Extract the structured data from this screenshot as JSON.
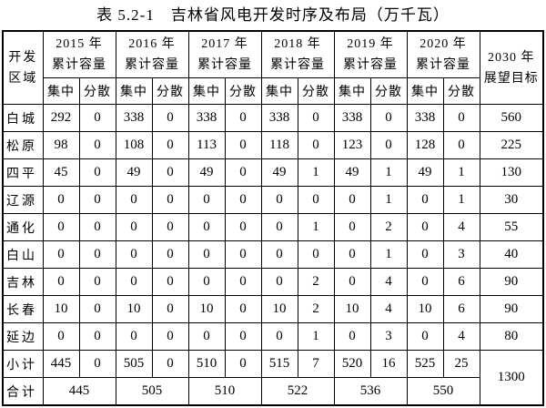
{
  "title": "表 5.2-1　吉林省风电开发时序及布局（万千瓦）",
  "table": {
    "region_header": {
      "line1": "开发",
      "line2": "区域"
    },
    "year_groups": [
      {
        "line1": "2015 年",
        "line2": "累计容量"
      },
      {
        "line1": "2016 年",
        "line2": "累计容量"
      },
      {
        "line1": "2017 年",
        "line2": "累计容量"
      },
      {
        "line1": "2018 年",
        "line2": "累计容量"
      },
      {
        "line1": "2019 年",
        "line2": "累计容量"
      },
      {
        "line1": "2020 年",
        "line2": "累计容量"
      }
    ],
    "subheaders": {
      "concentrated": "集中",
      "distributed": "分散"
    },
    "outlook_header": {
      "line1": "2030 年",
      "line2": "展望目标"
    },
    "rows": [
      {
        "region": "白城",
        "values": [
          "292",
          "0",
          "338",
          "0",
          "338",
          "0",
          "338",
          "0",
          "338",
          "0",
          "338",
          "0"
        ],
        "outlook": "560"
      },
      {
        "region": "松原",
        "values": [
          "98",
          "0",
          "108",
          "0",
          "113",
          "0",
          "118",
          "0",
          "123",
          "0",
          "128",
          "0"
        ],
        "outlook": "225"
      },
      {
        "region": "四平",
        "values": [
          "45",
          "0",
          "49",
          "0",
          "49",
          "0",
          "49",
          "1",
          "49",
          "1",
          "49",
          "1"
        ],
        "outlook": "130"
      },
      {
        "region": "辽源",
        "values": [
          "0",
          "0",
          "0",
          "0",
          "0",
          "0",
          "0",
          "0",
          "0",
          "1",
          "0",
          "1"
        ],
        "outlook": "30"
      },
      {
        "region": "通化",
        "values": [
          "0",
          "0",
          "0",
          "0",
          "0",
          "0",
          "0",
          "1",
          "0",
          "2",
          "0",
          "4"
        ],
        "outlook": "55"
      },
      {
        "region": "白山",
        "values": [
          "0",
          "0",
          "0",
          "0",
          "0",
          "0",
          "0",
          "0",
          "0",
          "1",
          "0",
          "3"
        ],
        "outlook": "40"
      },
      {
        "region": "吉林",
        "values": [
          "0",
          "0",
          "0",
          "0",
          "0",
          "0",
          "0",
          "2",
          "0",
          "4",
          "0",
          "6"
        ],
        "outlook": "90"
      },
      {
        "region": "长春",
        "values": [
          "10",
          "0",
          "10",
          "0",
          "10",
          "0",
          "10",
          "2",
          "10",
          "4",
          "10",
          "6"
        ],
        "outlook": "90"
      },
      {
        "region": "延边",
        "values": [
          "0",
          "0",
          "0",
          "0",
          "0",
          "0",
          "0",
          "1",
          "0",
          "3",
          "0",
          "4"
        ],
        "outlook": "80"
      }
    ],
    "subtotal": {
      "label": "小计",
      "values": [
        "445",
        "0",
        "505",
        "0",
        "510",
        "0",
        "515",
        "7",
        "520",
        "16",
        "525",
        "25"
      ]
    },
    "total": {
      "label": "合计",
      "values": [
        "445",
        "505",
        "510",
        "522",
        "536",
        "550"
      ]
    },
    "outlook_total": "1300"
  }
}
